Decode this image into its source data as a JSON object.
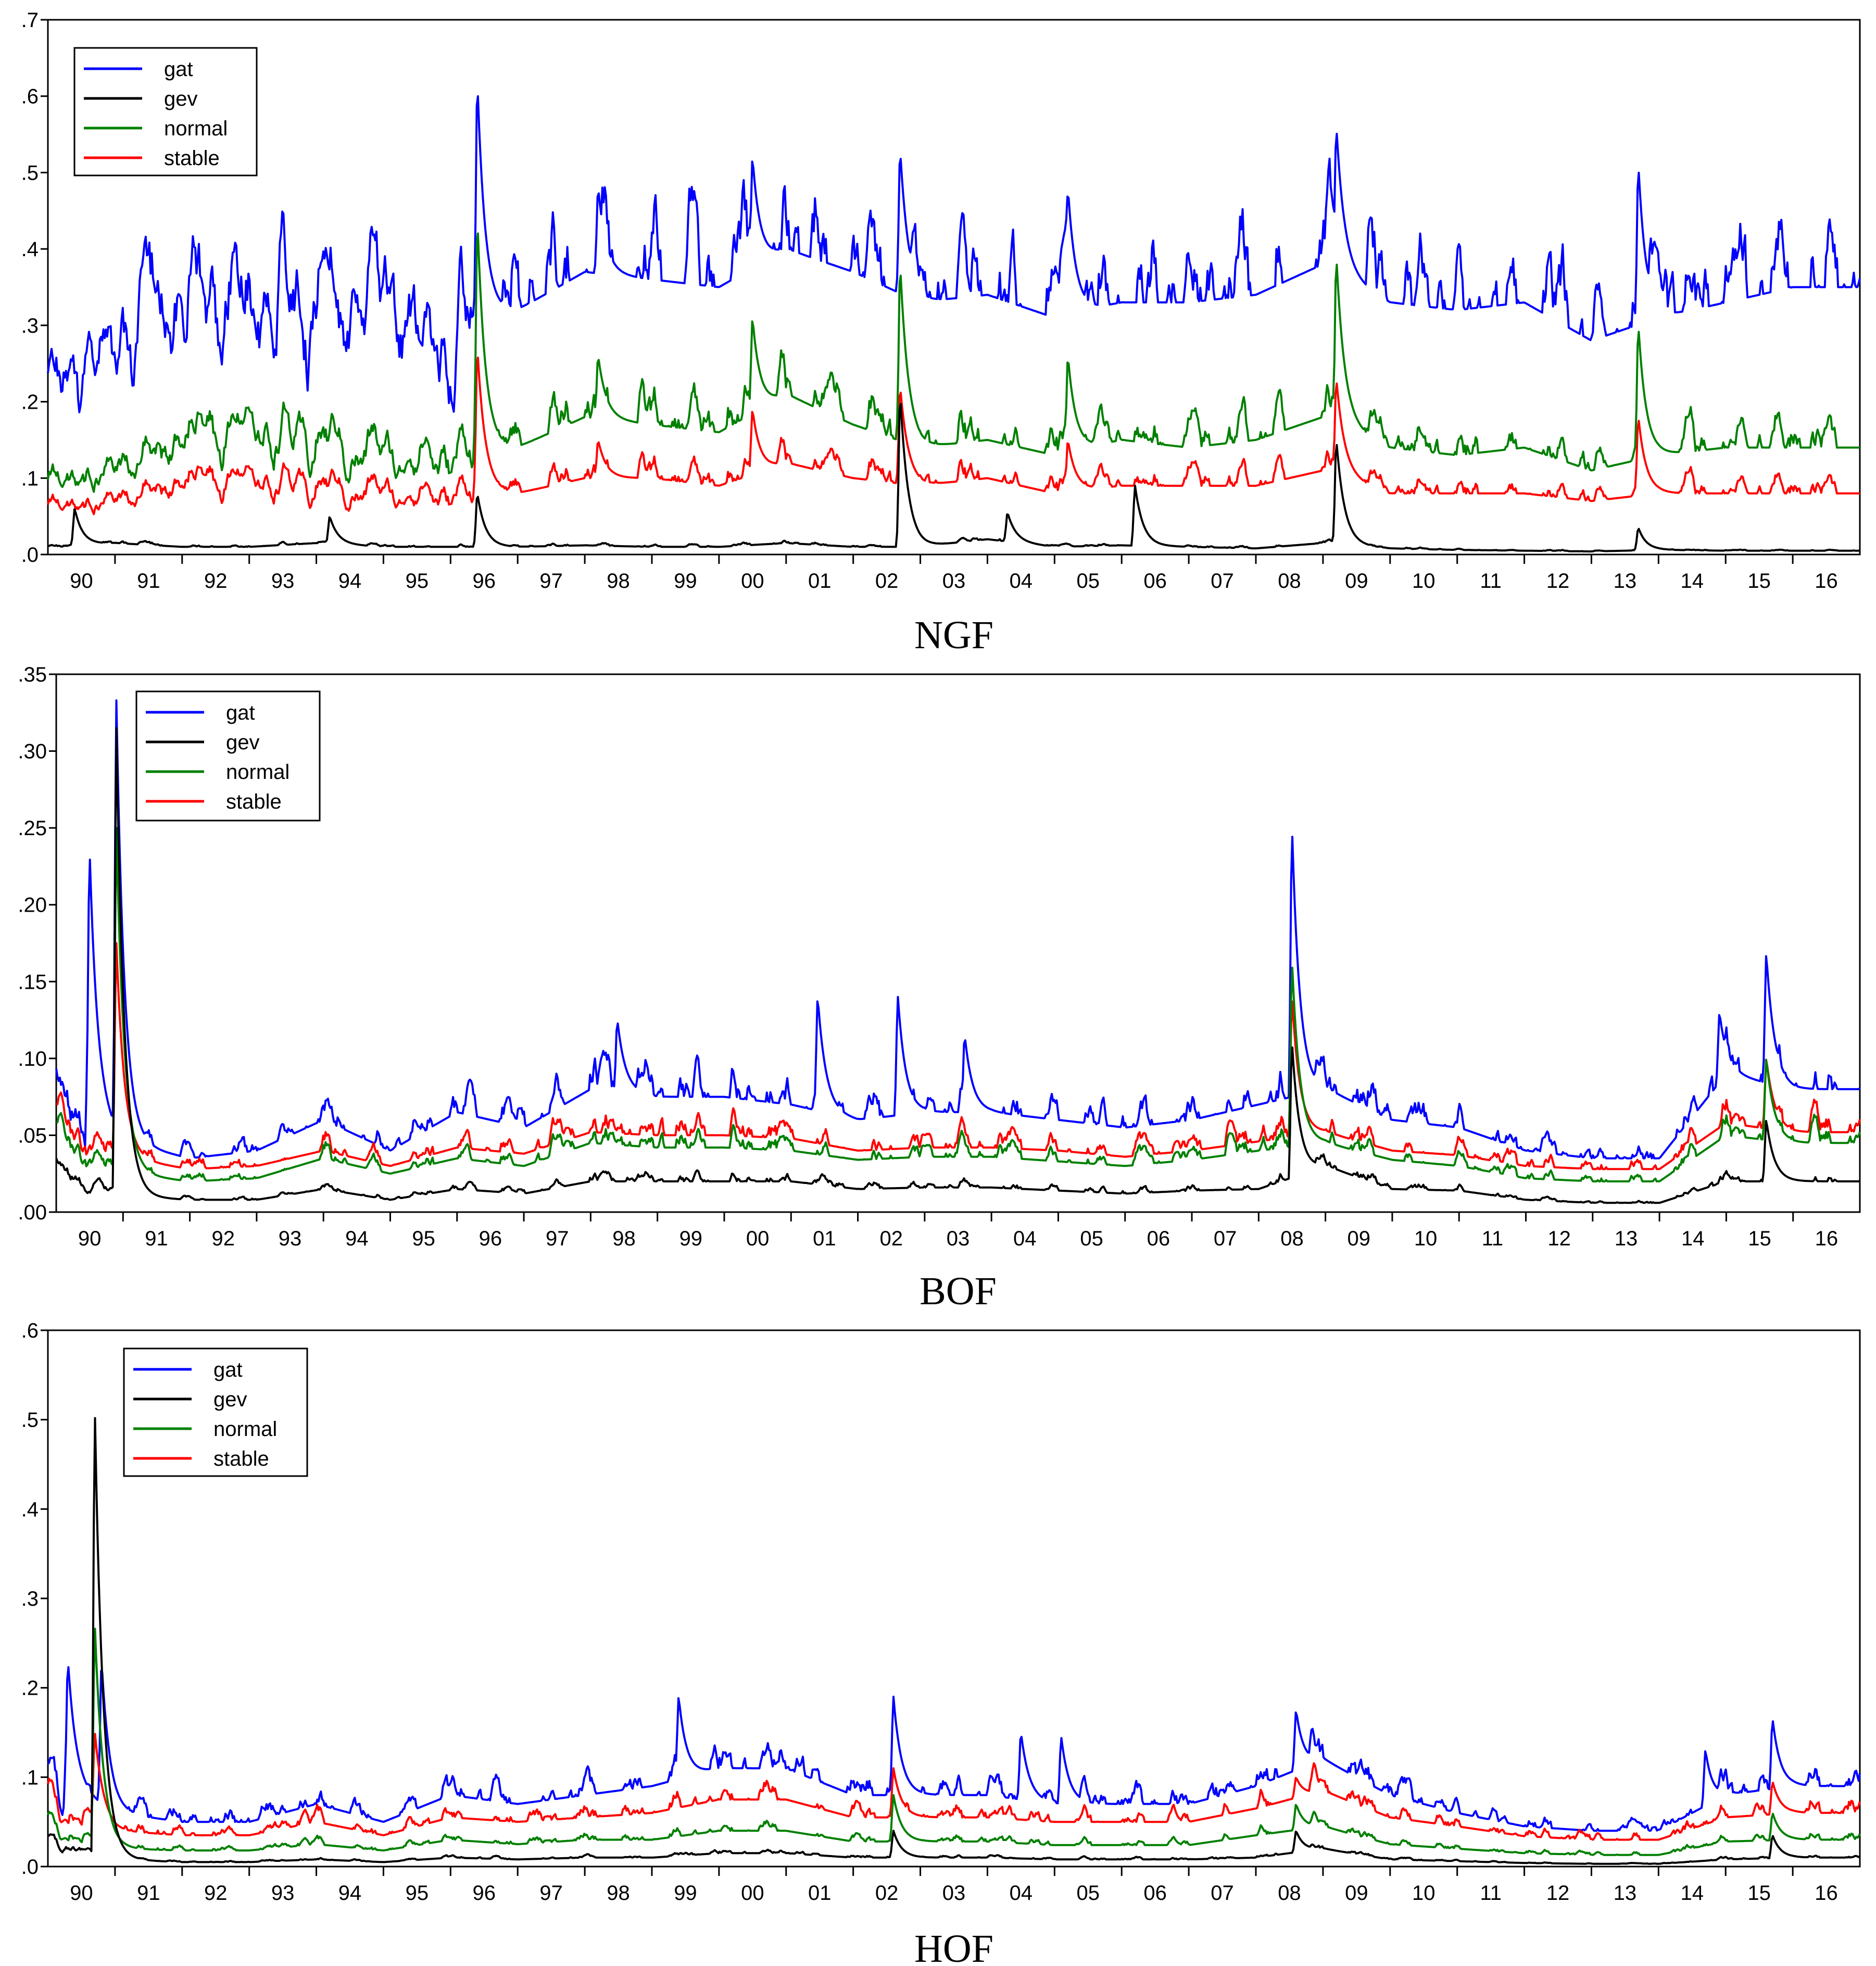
{
  "colors": {
    "gat": "#0000ff",
    "gev": "#000000",
    "normal": "#008000",
    "stable": "#ff0000"
  },
  "chart_data": [
    {
      "type": "line",
      "title": "NGF",
      "x_tick_labels": [
        "90",
        "91",
        "92",
        "93",
        "94",
        "95",
        "96",
        "97",
        "98",
        "99",
        "00",
        "01",
        "02",
        "03",
        "04",
        "05",
        "06",
        "07",
        "08",
        "09",
        "10",
        "11",
        "12",
        "13",
        "14",
        "15",
        "16"
      ],
      "y_tick_labels": [
        ".0",
        ".1",
        ".2",
        ".3",
        ".4",
        ".5",
        ".6",
        ".7"
      ],
      "ylim": [
        0,
        0.7
      ],
      "legend": {
        "position": "top-left",
        "entries": [
          "gat",
          "gev",
          "normal",
          "stable"
        ]
      },
      "series": [
        {
          "name": "gat",
          "base": [
            0.22,
            0.26,
            0.35,
            0.34,
            0.34,
            0.31,
            0.3,
            0.32,
            0.37,
            0.36,
            0.35,
            0.4,
            0.37,
            0.33,
            0.34,
            0.31,
            0.33,
            0.33,
            0.34,
            0.38,
            0.33,
            0.32,
            0.33,
            0.28,
            0.31,
            0.33,
            0.35
          ],
          "peaks": [
            [
              6.4,
              0.62
            ],
            [
              8.2,
              0.48
            ],
            [
              10.5,
              0.52
            ],
            [
              12.7,
              0.53
            ],
            [
              15.2,
              0.48
            ],
            [
              19.2,
              0.56
            ],
            [
              23.7,
              0.51
            ]
          ]
        },
        {
          "name": "gev",
          "base": [
            0.01,
            0.015,
            0.01,
            0.01,
            0.015,
            0.01,
            0.01,
            0.01,
            0.012,
            0.01,
            0.01,
            0.015,
            0.01,
            0.01,
            0.02,
            0.01,
            0.012,
            0.01,
            0.008,
            0.015,
            0.008,
            0.006,
            0.005,
            0.004,
            0.006,
            0.005,
            0.005
          ],
          "peaks": [
            [
              0.4,
              0.06
            ],
            [
              4.2,
              0.05
            ],
            [
              6.4,
              0.08
            ],
            [
              12.7,
              0.21
            ],
            [
              14.3,
              0.055
            ],
            [
              16.2,
              0.09
            ],
            [
              19.2,
              0.15
            ],
            [
              23.7,
              0.035
            ]
          ]
        },
        {
          "name": "normal",
          "base": [
            0.09,
            0.11,
            0.16,
            0.15,
            0.15,
            0.13,
            0.13,
            0.14,
            0.18,
            0.17,
            0.16,
            0.21,
            0.17,
            0.14,
            0.15,
            0.13,
            0.15,
            0.14,
            0.15,
            0.18,
            0.14,
            0.13,
            0.14,
            0.11,
            0.13,
            0.14,
            0.14
          ],
          "peaks": [
            [
              6.4,
              0.44
            ],
            [
              8.2,
              0.26
            ],
            [
              10.5,
              0.31
            ],
            [
              12.7,
              0.38
            ],
            [
              15.2,
              0.26
            ],
            [
              19.2,
              0.39
            ],
            [
              23.7,
              0.3
            ]
          ]
        },
        {
          "name": "stable",
          "base": [
            0.06,
            0.07,
            0.1,
            0.09,
            0.09,
            0.08,
            0.08,
            0.08,
            0.1,
            0.1,
            0.09,
            0.12,
            0.1,
            0.09,
            0.1,
            0.08,
            0.09,
            0.09,
            0.09,
            0.11,
            0.08,
            0.08,
            0.08,
            0.07,
            0.08,
            0.08,
            0.08
          ],
          "peaks": [
            [
              6.4,
              0.27
            ],
            [
              8.2,
              0.15
            ],
            [
              10.5,
              0.19
            ],
            [
              12.7,
              0.22
            ],
            [
              15.2,
              0.15
            ],
            [
              19.2,
              0.23
            ],
            [
              23.7,
              0.18
            ]
          ]
        }
      ]
    },
    {
      "type": "line",
      "title": "BOF",
      "x_tick_labels": [
        "90",
        "91",
        "92",
        "93",
        "94",
        "95",
        "96",
        "97",
        "98",
        "99",
        "00",
        "01",
        "02",
        "03",
        "04",
        "05",
        "06",
        "07",
        "08",
        "09",
        "10",
        "11",
        "12",
        "13",
        "14",
        "15",
        "16"
      ],
      "y_tick_labels": [
        ".00",
        ".05",
        ".10",
        ".15",
        ".20",
        ".25",
        ".30",
        ".35"
      ],
      "ylim": [
        0,
        0.35
      ],
      "legend": {
        "position": "top-left",
        "entries": [
          "gat",
          "gev",
          "normal",
          "stable"
        ]
      },
      "series": [
        {
          "name": "gat",
          "base": [
            0.08,
            0.045,
            0.035,
            0.04,
            0.06,
            0.04,
            0.065,
            0.055,
            0.08,
            0.075,
            0.075,
            0.07,
            0.06,
            0.065,
            0.065,
            0.06,
            0.055,
            0.06,
            0.07,
            0.08,
            0.06,
            0.055,
            0.04,
            0.035,
            0.035,
            0.09,
            0.08
          ],
          "peaks": [
            [
              0.5,
              0.235
            ],
            [
              0.9,
              0.333
            ],
            [
              8.4,
              0.125
            ],
            [
              11.4,
              0.14
            ],
            [
              12.6,
              0.14
            ],
            [
              13.6,
              0.115
            ],
            [
              18.5,
              0.25
            ],
            [
              24.9,
              0.13
            ],
            [
              25.6,
              0.168
            ]
          ]
        },
        {
          "name": "gev",
          "base": [
            0.03,
            0.01,
            0.008,
            0.008,
            0.015,
            0.008,
            0.015,
            0.012,
            0.02,
            0.02,
            0.02,
            0.02,
            0.015,
            0.016,
            0.016,
            0.014,
            0.012,
            0.014,
            0.015,
            0.03,
            0.015,
            0.014,
            0.008,
            0.006,
            0.006,
            0.02,
            0.02
          ],
          "peaks": [
            [
              0.9,
              0.315
            ],
            [
              18.5,
              0.11
            ],
            [
              25.6,
              0.06
            ]
          ]
        },
        {
          "name": "normal",
          "base": [
            0.05,
            0.025,
            0.02,
            0.022,
            0.035,
            0.025,
            0.035,
            0.03,
            0.045,
            0.042,
            0.042,
            0.04,
            0.034,
            0.036,
            0.036,
            0.033,
            0.03,
            0.034,
            0.04,
            0.045,
            0.034,
            0.03,
            0.022,
            0.02,
            0.02,
            0.05,
            0.045
          ],
          "peaks": [
            [
              0.9,
              0.25
            ],
            [
              18.5,
              0.163
            ],
            [
              25.6,
              0.1
            ]
          ]
        },
        {
          "name": "stable",
          "base": [
            0.06,
            0.035,
            0.028,
            0.03,
            0.04,
            0.03,
            0.042,
            0.038,
            0.052,
            0.05,
            0.05,
            0.048,
            0.04,
            0.042,
            0.042,
            0.04,
            0.036,
            0.04,
            0.046,
            0.052,
            0.04,
            0.037,
            0.03,
            0.028,
            0.028,
            0.058,
            0.052
          ],
          "peaks": [
            [
              0.9,
              0.175
            ],
            [
              18.5,
              0.14
            ],
            [
              25.6,
              0.1
            ]
          ]
        }
      ]
    },
    {
      "type": "line",
      "title": "HOF",
      "x_tick_labels": [
        "90",
        "91",
        "92",
        "93",
        "94",
        "95",
        "96",
        "97",
        "98",
        "99",
        "00",
        "01",
        "02",
        "03",
        "04",
        "05",
        "06",
        "07",
        "08",
        "09",
        "10",
        "11",
        "12",
        "13",
        "14",
        "15",
        "16"
      ],
      "y_tick_labels": [
        ".0",
        ".1",
        ".2",
        ".3",
        ".4",
        ".5",
        ".6"
      ],
      "ylim": [
        0,
        0.6
      ],
      "legend": {
        "position": "top-left",
        "entries": [
          "gat",
          "gev",
          "normal",
          "stable"
        ]
      },
      "series": [
        {
          "name": "gat",
          "base": [
            0.1,
            0.06,
            0.05,
            0.05,
            0.07,
            0.05,
            0.08,
            0.07,
            0.08,
            0.09,
            0.11,
            0.11,
            0.08,
            0.08,
            0.08,
            0.07,
            0.07,
            0.07,
            0.09,
            0.12,
            0.08,
            0.06,
            0.045,
            0.04,
            0.04,
            0.08,
            0.09
          ],
          "peaks": [
            [
              0.3,
              0.23
            ],
            [
              0.8,
              0.23
            ],
            [
              9.4,
              0.19
            ],
            [
              12.6,
              0.19
            ],
            [
              14.5,
              0.15
            ],
            [
              15.1,
              0.145
            ],
            [
              18.6,
              0.175
            ],
            [
              24.7,
              0.13
            ],
            [
              25.7,
              0.165
            ]
          ]
        },
        {
          "name": "gev",
          "base": [
            0.03,
            0.008,
            0.005,
            0.005,
            0.008,
            0.005,
            0.01,
            0.008,
            0.01,
            0.01,
            0.015,
            0.015,
            0.01,
            0.01,
            0.01,
            0.008,
            0.008,
            0.008,
            0.01,
            0.02,
            0.008,
            0.006,
            0.004,
            0.003,
            0.003,
            0.008,
            0.01
          ],
          "peaks": [
            [
              0.7,
              0.51
            ],
            [
              12.6,
              0.04
            ],
            [
              18.6,
              0.04
            ],
            [
              25.7,
              0.035
            ]
          ]
        },
        {
          "name": "normal",
          "base": [
            0.05,
            0.02,
            0.018,
            0.018,
            0.025,
            0.018,
            0.03,
            0.025,
            0.03,
            0.03,
            0.04,
            0.04,
            0.028,
            0.028,
            0.028,
            0.024,
            0.024,
            0.024,
            0.035,
            0.045,
            0.025,
            0.02,
            0.015,
            0.013,
            0.013,
            0.028,
            0.03
          ],
          "peaks": [
            [
              0.7,
              0.27
            ],
            [
              12.6,
              0.08
            ],
            [
              18.6,
              0.07
            ],
            [
              25.7,
              0.06
            ]
          ]
        },
        {
          "name": "stable",
          "base": [
            0.08,
            0.04,
            0.035,
            0.035,
            0.05,
            0.035,
            0.055,
            0.05,
            0.055,
            0.06,
            0.075,
            0.075,
            0.055,
            0.055,
            0.055,
            0.05,
            0.05,
            0.05,
            0.065,
            0.085,
            0.055,
            0.045,
            0.034,
            0.03,
            0.03,
            0.055,
            0.06
          ],
          "peaks": [
            [
              0.7,
              0.15
            ],
            [
              12.6,
              0.11
            ],
            [
              18.6,
              0.1
            ],
            [
              25.7,
              0.095
            ]
          ]
        }
      ]
    }
  ]
}
